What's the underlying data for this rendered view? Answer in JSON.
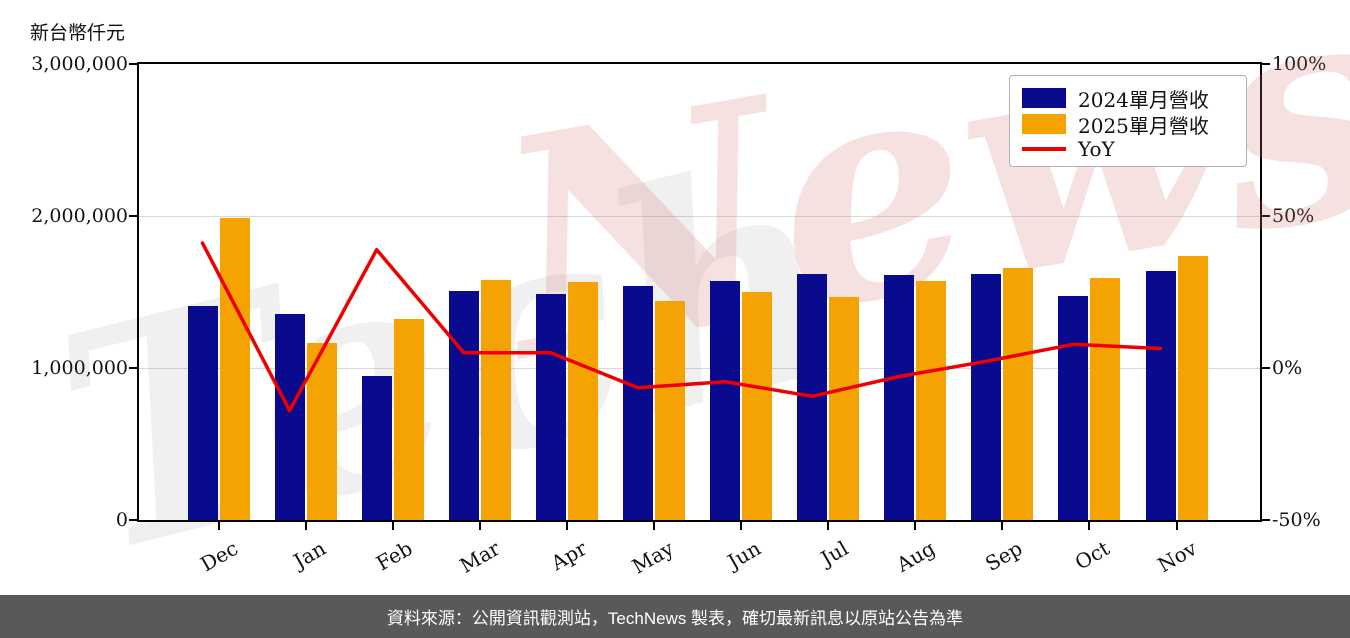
{
  "axis_title": "新台幣仟元",
  "footer": {
    "text": "資料來源：公開資訊觀測站，TechNews 製表，確切最新訊息以原站公告為準",
    "bg_color": "#595959",
    "text_color": "#ffffff"
  },
  "watermark": {
    "part1": "Tech",
    "part2": "News"
  },
  "colors": {
    "bar_2024": "#0a0a8e",
    "bar_2025": "#f5a302",
    "yoy_line": "#ee0000",
    "grid": "#d9d9d9",
    "axis": "#000000",
    "legend_border": "#b0b0b0"
  },
  "chart_data": {
    "type": "bar",
    "title": "",
    "ylabel": "新台幣仟元",
    "grid": "horizontal",
    "legend_position": "top-right",
    "categories": [
      "Dec",
      "Jan",
      "Feb",
      "Mar",
      "Apr",
      "May",
      "Jun",
      "Jul",
      "Aug",
      "Sep",
      "Oct",
      "Nov"
    ],
    "series": [
      {
        "name": "2024單月營收",
        "type": "bar",
        "color": "#0a0a8e",
        "axis": "left",
        "values": [
          1410000,
          1355000,
          950000,
          1505000,
          1490000,
          1540000,
          1570000,
          1620000,
          1615000,
          1620000,
          1475000,
          1635000
        ]
      },
      {
        "name": "2025單月營收",
        "type": "bar",
        "color": "#f5a302",
        "axis": "left",
        "values": [
          1990000,
          1165000,
          1320000,
          1580000,
          1565000,
          1440000,
          1500000,
          1470000,
          1570000,
          1655000,
          1590000,
          1740000
        ]
      },
      {
        "name": "YoY",
        "type": "line",
        "color": "#ee0000",
        "axis": "right",
        "values_pct": [
          41.1,
          -14.0,
          38.9,
          5.0,
          5.0,
          -6.5,
          -4.5,
          -9.3,
          -2.8,
          2.2,
          7.8,
          6.4
        ]
      }
    ],
    "y_left": {
      "min": 0,
      "max": 3000000,
      "tick_values": [
        0,
        1000000,
        2000000,
        3000000
      ],
      "tick_labels": [
        "0",
        "1,000,000",
        "2,000,000",
        "3,000,000"
      ]
    },
    "y_right": {
      "min": -50,
      "max": 100,
      "tick_values": [
        -50,
        0,
        50,
        100
      ],
      "tick_labels": [
        "-50%",
        "0%",
        "50%",
        "100%"
      ]
    }
  }
}
